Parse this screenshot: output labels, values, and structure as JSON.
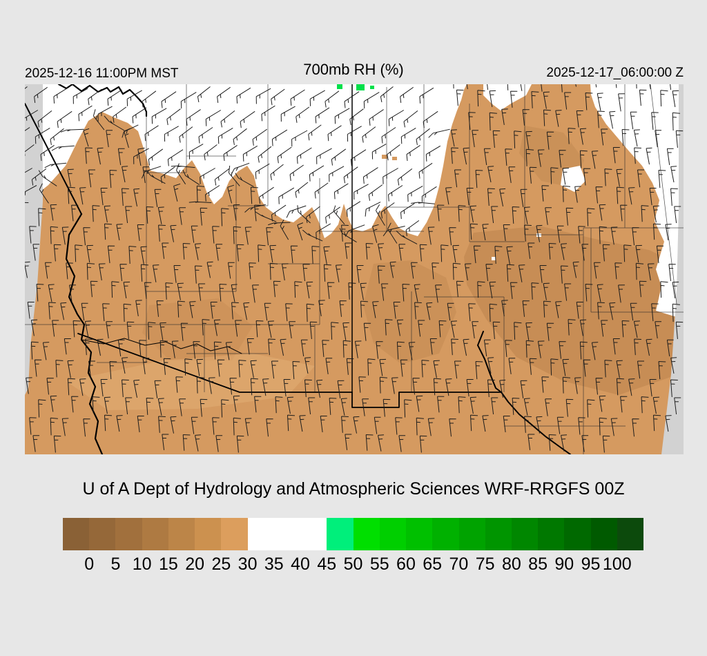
{
  "header": {
    "valid_local": "2025-12-16 11:00PM MST",
    "title": "700mb RH (%)",
    "valid_utc": "2025-12-17_06:00:00 Z"
  },
  "caption": "U of A Dept of Hydrology and Atmospheric Sciences WRF-RRGFS 00Z",
  "chart_data": {
    "type": "heatmap",
    "title": "700mb RH (%)",
    "field": "700 mb relative humidity with wind barbs",
    "model": "WRF-RRGFS",
    "init_cycle": "00Z",
    "valid_local": "2025-12-16 11:00PM MST",
    "valid_utc": "2025-12-17_06:00:00 Z",
    "units": "%",
    "scale_min": 0,
    "scale_max": 100,
    "scale_step": 5,
    "legend_position": "bottom",
    "dominant_values": "RH 25-30% (tan/brown) over most of the domain; RH 30-45% (white) across the north and northeast; isolated RH 45-55% (green) specks near the north-center edge"
  },
  "colorbar": {
    "units": "%",
    "tick_labels": [
      "0",
      "5",
      "10",
      "15",
      "20",
      "25",
      "30",
      "35",
      "40",
      "45",
      "50",
      "55",
      "60",
      "65",
      "70",
      "75",
      "80",
      "85",
      "90",
      "95",
      "100"
    ],
    "segment_colors": [
      "#8a6136",
      "#956839",
      "#a1703d",
      "#ae7a42",
      "#bc8548",
      "#cc914f",
      "#dc9e5d",
      "#ffffff",
      "#ffffff",
      "#ffffff",
      "#00ef7b",
      "#00df00",
      "#00cf00",
      "#00c000",
      "#00b100",
      "#00a300",
      "#009500",
      "#008700",
      "#007800",
      "#006900",
      "#005a00",
      "#0c4a0c"
    ]
  },
  "map_colors": {
    "dry_fill": "#d59a60",
    "moist_fill": "#ffffff",
    "patch_dark": "#8f5c2c",
    "patch_light": "#ecbb82",
    "green_spot": "#00e04a",
    "outside_domain": "#d2d2d2",
    "barb": "#1c1c1c",
    "border": "#000000",
    "background": "#e7e7e7"
  }
}
